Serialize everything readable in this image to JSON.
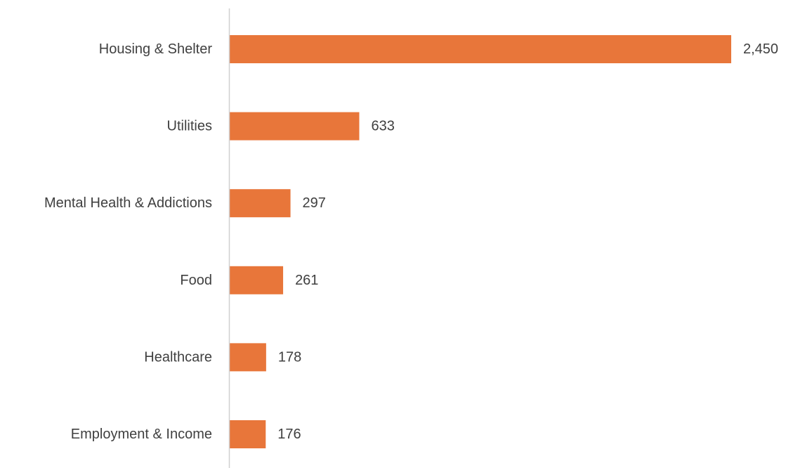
{
  "chart_data": {
    "type": "bar",
    "orientation": "horizontal",
    "categories": [
      "Housing & Shelter",
      "Utilities",
      "Mental Health & Addictions",
      "Food",
      "Healthcare",
      "Employment & Income"
    ],
    "values": [
      2450,
      633,
      297,
      261,
      178,
      176
    ],
    "value_labels": [
      "2,450",
      "633",
      "297",
      "261",
      "178",
      "176"
    ],
    "title": "",
    "xlabel": "",
    "ylabel": "",
    "xlim": [
      0,
      2450
    ],
    "grid": false,
    "legend": "none",
    "bar_color": "#E8763A",
    "axis_color": "#D0D0D0",
    "text_color": "#404040"
  }
}
